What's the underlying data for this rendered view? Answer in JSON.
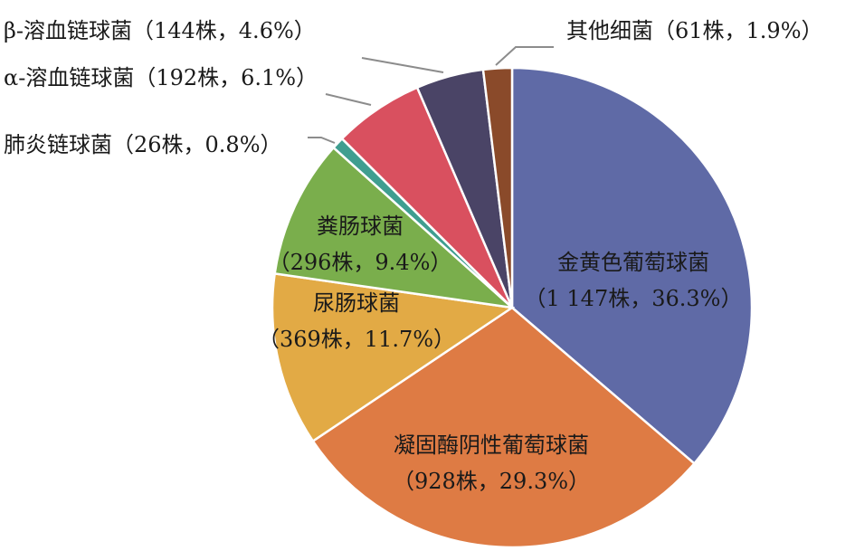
{
  "chart_data": {
    "type": "pie",
    "title": "",
    "slices": [
      {
        "name": "金黄色葡萄球菌",
        "count_text": "（1 147株，36.3%）",
        "count": 1147,
        "percent": 36.3,
        "color": "#5f6aa6"
      },
      {
        "name": "凝固酶阴性葡萄球菌",
        "count_text": "（928株，29.3%）",
        "count": 928,
        "percent": 29.3,
        "color": "#de7b44"
      },
      {
        "name": "尿肠球菌",
        "count_text": "（369株，11.7%）",
        "count": 369,
        "percent": 11.7,
        "color": "#e2aa45"
      },
      {
        "name": "粪肠球菌",
        "count_text": "（296株，9.4%）",
        "count": 296,
        "percent": 9.4,
        "color": "#7aae4c"
      },
      {
        "name": "肺炎链球菌",
        "count_text": "（26株，0.8%）",
        "count": 26,
        "percent": 0.8,
        "color": "#3f9e90"
      },
      {
        "name": "α-溶血链球菌",
        "count_text": "（192株，6.1%）",
        "count": 192,
        "percent": 6.1,
        "color": "#d9505f"
      },
      {
        "name": "β-溶血链球菌",
        "count_text": "（144株，4.6%）",
        "count": 144,
        "percent": 4.6,
        "color": "#4a4466"
      },
      {
        "name": "其他细菌",
        "count_text": "（61株，1.9%）",
        "count": 61,
        "percent": 1.9,
        "color": "#8a4a2a"
      }
    ]
  }
}
